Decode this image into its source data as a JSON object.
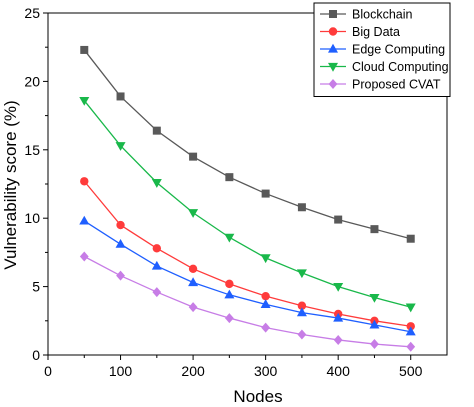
{
  "chart_data": {
    "type": "line",
    "title": "",
    "xlabel": "Nodes",
    "ylabel": "Vulnerability score  (%)",
    "xlim": [
      0,
      550
    ],
    "ylim": [
      0,
      25
    ],
    "xticks": [
      0,
      100,
      200,
      300,
      400,
      500
    ],
    "yticks": [
      0,
      5,
      10,
      15,
      20,
      25
    ],
    "grid": false,
    "legend_position": "top-right",
    "x": [
      50,
      100,
      150,
      200,
      250,
      300,
      350,
      400,
      450,
      500
    ],
    "series": [
      {
        "name": "Blockchain",
        "color": "#595959",
        "marker": "square",
        "values": [
          22.3,
          18.9,
          16.4,
          14.5,
          13.0,
          11.8,
          10.8,
          9.9,
          9.2,
          8.5
        ]
      },
      {
        "name": "Big Data",
        "color": "#ff3b3b",
        "marker": "circle",
        "values": [
          12.7,
          9.5,
          7.8,
          6.3,
          5.2,
          4.3,
          3.6,
          3.0,
          2.5,
          2.1
        ]
      },
      {
        "name": "Edge Computing",
        "color": "#1f5fff",
        "marker": "triangle-up",
        "values": [
          9.8,
          8.1,
          6.5,
          5.3,
          4.4,
          3.7,
          3.1,
          2.7,
          2.2,
          1.7
        ]
      },
      {
        "name": "Cloud Computing",
        "color": "#19b84a",
        "marker": "triangle-down",
        "values": [
          18.6,
          15.3,
          12.6,
          10.4,
          8.6,
          7.1,
          6.0,
          5.0,
          4.2,
          3.5
        ]
      },
      {
        "name": "Proposed CVAT",
        "color": "#c77de6",
        "marker": "diamond",
        "values": [
          7.2,
          5.8,
          4.6,
          3.5,
          2.7,
          2.0,
          1.5,
          1.1,
          0.8,
          0.6
        ]
      }
    ]
  }
}
